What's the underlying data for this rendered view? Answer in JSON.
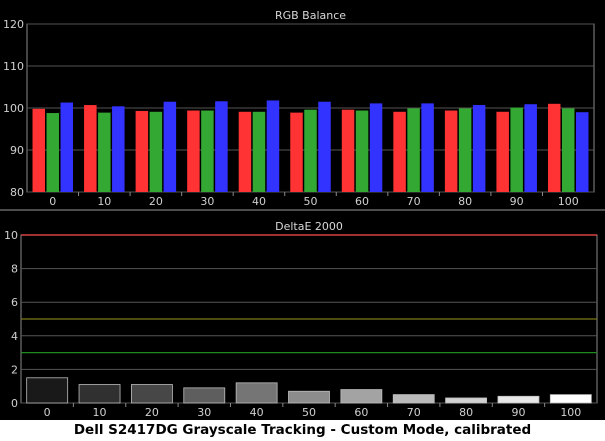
{
  "chart_data": [
    {
      "type": "bar",
      "title": "RGB Balance",
      "categories": [
        "0",
        "10",
        "20",
        "30",
        "40",
        "50",
        "60",
        "70",
        "80",
        "90",
        "100"
      ],
      "ylim": [
        80,
        120
      ],
      "yticks": [
        "80",
        "90",
        "100",
        "110",
        "120"
      ],
      "grid": true,
      "series": [
        {
          "values": [
            99.8,
            100.7,
            99.3,
            99.4,
            99.1,
            98.9,
            99.6,
            99.1,
            99.4,
            99.1,
            101.0
          ]
        },
        {
          "values": [
            98.8,
            98.9,
            99.1,
            99.4,
            99.1,
            99.6,
            99.4,
            99.9,
            99.9,
            100.1,
            99.9
          ]
        },
        {
          "values": [
            101.3,
            100.4,
            101.5,
            101.6,
            101.8,
            101.5,
            101.1,
            101.1,
            100.7,
            100.9,
            99.0
          ]
        }
      ],
      "colors": {
        "red": "#ff3333",
        "green": "#33a833",
        "blue": "#3333ff"
      }
    },
    {
      "type": "bar",
      "title": "DeltaE 2000",
      "categories": [
        "0",
        "10",
        "20",
        "30",
        "40",
        "50",
        "60",
        "70",
        "80",
        "90",
        "100"
      ],
      "ylim": [
        0,
        10
      ],
      "yticks": [
        "0",
        "2",
        "4",
        "6",
        "8",
        "10"
      ],
      "grid": true,
      "values": [
        1.5,
        1.1,
        1.1,
        0.9,
        1.2,
        0.7,
        0.8,
        0.5,
        0.3,
        0.4,
        0.5
      ],
      "reference_lines": [
        {
          "value": 10,
          "color": "#ff5050"
        },
        {
          "value": 5,
          "color": "#7a7a1a"
        },
        {
          "value": 3,
          "color": "#1f8a1f"
        }
      ]
    }
  ],
  "caption": "Dell S2417DG Grayscale Tracking - Custom Mode, calibrated"
}
